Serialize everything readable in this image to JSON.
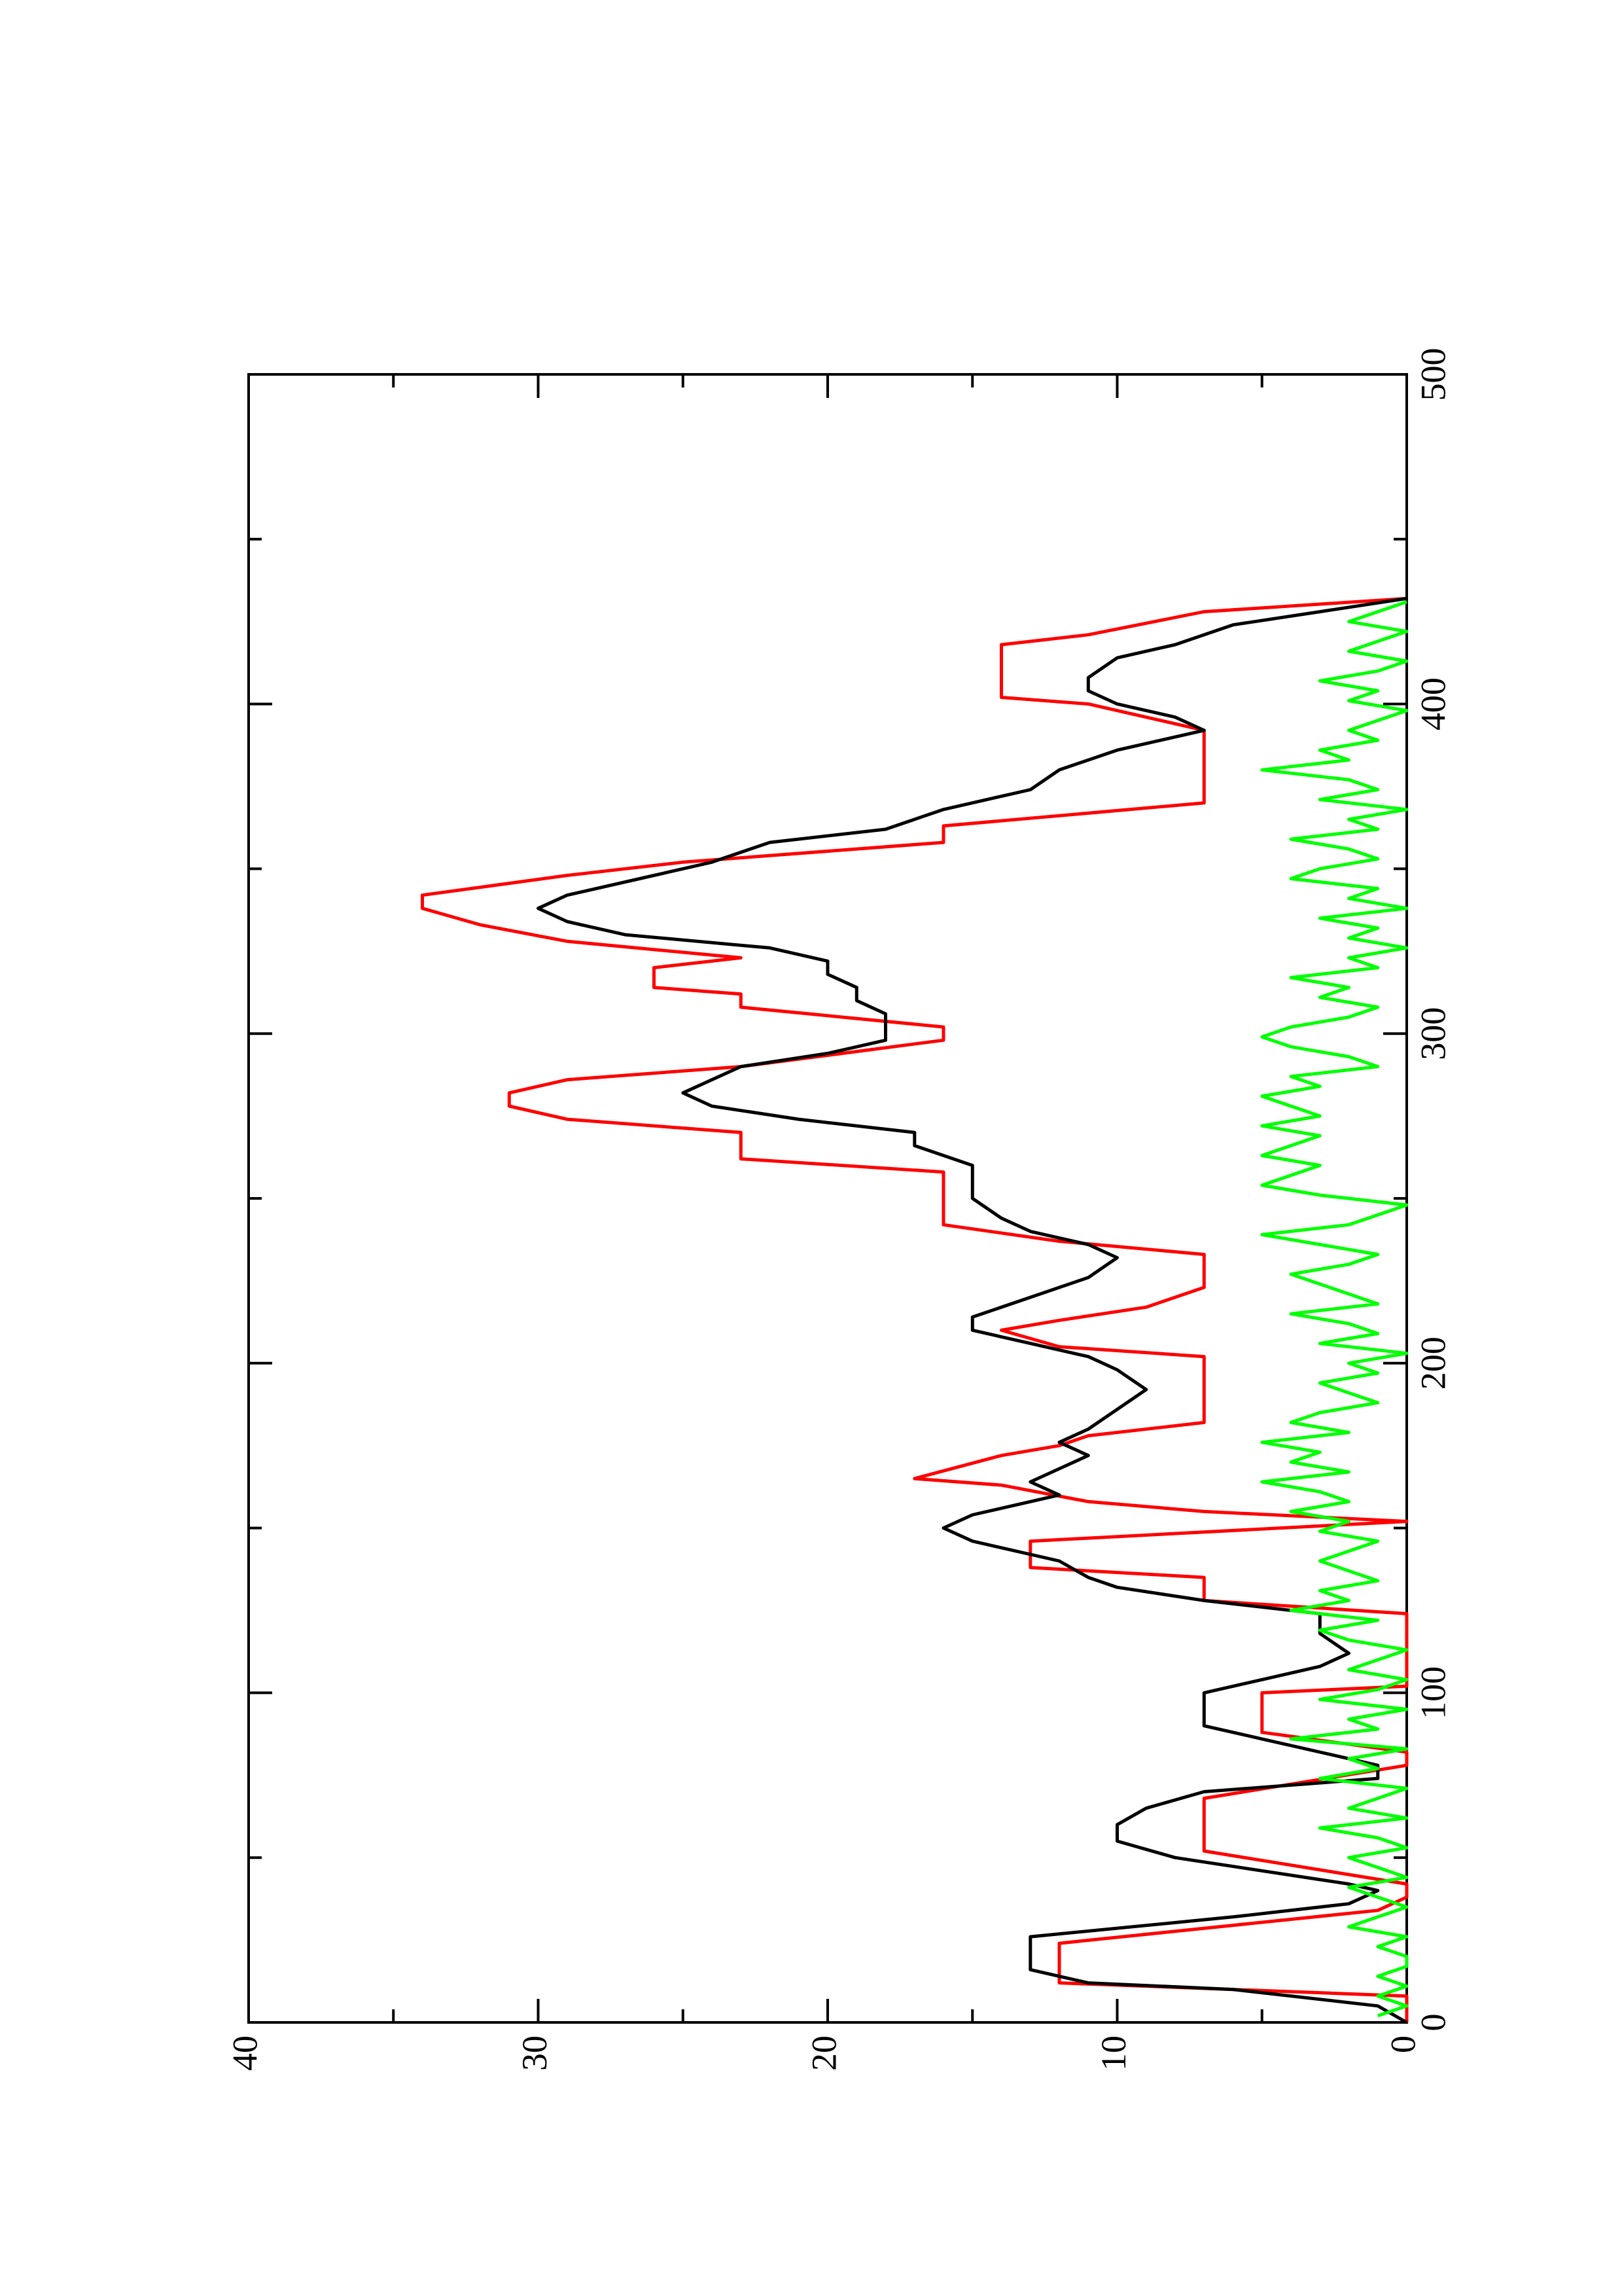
{
  "chart_data": {
    "type": "line",
    "orientation": "rotated-90-ccw",
    "title": "",
    "xlabel": "",
    "ylabel": "",
    "xlim": [
      0,
      500
    ],
    "ylim": [
      0,
      40
    ],
    "x_ticks": [
      0,
      100,
      200,
      300,
      400,
      500
    ],
    "y_ticks": [
      0,
      10,
      20,
      30,
      40
    ],
    "grid": false,
    "legend": "none",
    "series": [
      {
        "color": "#ff0000",
        "x": [
          0,
          8,
          12,
          22,
          24,
          34,
          38,
          42,
          52,
          54,
          66,
          68,
          78,
          82,
          88,
          90,
          100,
          102,
          110,
          124,
          128,
          135,
          138,
          143,
          146,
          152,
          155,
          158,
          163,
          165,
          172,
          175,
          178,
          182,
          190,
          202,
          205,
          210,
          213,
          217,
          223,
          233,
          237,
          242,
          248,
          258,
          262,
          270,
          274,
          278,
          282,
          286,
          290,
          298,
          302,
          308,
          312,
          314,
          320,
          323,
          328,
          333,
          338,
          342,
          348,
          352,
          358,
          363,
          370,
          390,
          392,
          400,
          402,
          408,
          418,
          421,
          428,
          432
        ],
        "y": [
          0,
          0,
          12,
          12,
          12,
          1,
          0,
          0,
          7,
          7,
          7,
          7,
          0,
          0,
          5,
          5,
          5,
          0,
          0,
          0,
          7,
          7,
          13,
          13,
          13,
          0,
          7,
          11,
          14,
          17,
          14,
          12,
          11,
          7,
          7,
          7,
          12,
          14,
          12,
          9,
          7,
          7,
          12,
          16,
          16,
          16,
          23,
          23,
          29,
          31,
          31,
          29,
          23,
          16,
          16,
          23,
          23,
          26,
          26,
          23,
          29,
          32,
          34,
          34,
          29,
          25,
          16,
          16,
          7,
          7,
          7,
          11,
          14,
          14,
          14,
          11,
          7,
          0
        ]
      },
      {
        "color": "#000000",
        "x": [
          0,
          5,
          10,
          12,
          16,
          22,
          26,
          32,
          36,
          40,
          42,
          50,
          55,
          60,
          65,
          70,
          74,
          78,
          82,
          86,
          90,
          96,
          100,
          104,
          108,
          112,
          118,
          124,
          128,
          132,
          135,
          140,
          146,
          150,
          154,
          160,
          164,
          168,
          172,
          176,
          180,
          186,
          192,
          198,
          202,
          206,
          210,
          214,
          220,
          226,
          232,
          236,
          240,
          244,
          250,
          256,
          260,
          266,
          270,
          274,
          278,
          282,
          286,
          290,
          294,
          298,
          302,
          306,
          310,
          314,
          318,
          322,
          326,
          330,
          334,
          338,
          342,
          348,
          352,
          358,
          362,
          368,
          374,
          380,
          386,
          392,
          396,
          400,
          404,
          408,
          414,
          418,
          424,
          428,
          432
        ],
        "y": [
          0,
          1,
          6,
          11,
          13,
          13,
          13,
          6,
          2,
          1,
          2,
          8,
          10,
          10,
          9,
          7,
          1,
          1,
          3,
          5,
          7,
          7,
          7,
          5,
          3,
          2,
          3,
          3,
          7,
          10,
          11,
          12,
          15,
          16,
          15,
          12,
          13,
          12,
          11,
          12,
          11,
          10,
          9,
          10,
          11,
          13,
          15,
          15,
          13,
          11,
          10,
          11,
          13,
          14,
          15,
          15,
          15,
          17,
          17,
          21,
          24,
          25,
          24,
          23,
          20,
          18,
          18,
          18,
          19,
          19,
          20,
          20,
          22,
          27,
          29,
          30,
          29,
          26,
          24,
          22,
          18,
          16,
          13,
          12,
          10,
          7,
          8,
          10,
          11,
          11,
          10,
          8,
          6,
          3,
          0
        ]
      },
      {
        "color": "#00ff00",
        "x": [
          2,
          5,
          8,
          11,
          14,
          17,
          20,
          23,
          26,
          29,
          32,
          35,
          38,
          41,
          44,
          47,
          50,
          53,
          56,
          59,
          62,
          65,
          68,
          71,
          74,
          77,
          80,
          83,
          86,
          89,
          92,
          95,
          98,
          101,
          104,
          107,
          110,
          113,
          116,
          119,
          122,
          125,
          128,
          131,
          134,
          137,
          140,
          143,
          146,
          149,
          152,
          155,
          158,
          161,
          164,
          167,
          170,
          173,
          176,
          179,
          182,
          185,
          188,
          191,
          194,
          197,
          200,
          203,
          206,
          209,
          212,
          215,
          218,
          221,
          224,
          227,
          230,
          233,
          236,
          239,
          242,
          245,
          248,
          251,
          254,
          257,
          260,
          263,
          266,
          269,
          272,
          275,
          278,
          281,
          284,
          287,
          290,
          293,
          296,
          299,
          302,
          305,
          308,
          311,
          314,
          317,
          320,
          323,
          326,
          329,
          332,
          335,
          338,
          341,
          344,
          347,
          350,
          353,
          356,
          359,
          362,
          365,
          368,
          371,
          374,
          377,
          380,
          383,
          386,
          389,
          392,
          395,
          398,
          401,
          404,
          407,
          410,
          413,
          416,
          419,
          422,
          425,
          428,
          431
        ],
        "y": [
          1,
          0,
          1,
          0,
          1,
          0,
          0,
          1,
          0,
          2,
          1,
          0,
          1,
          2,
          0,
          1,
          2,
          0,
          1,
          3,
          0,
          2,
          1,
          0,
          3,
          1,
          2,
          0,
          4,
          1,
          2,
          0,
          3,
          1,
          0,
          2,
          1,
          0,
          2,
          3,
          1,
          4,
          2,
          3,
          1,
          2,
          3,
          2,
          1,
          3,
          2,
          4,
          2,
          3,
          5,
          2,
          4,
          3,
          5,
          2,
          4,
          3,
          1,
          2,
          3,
          1,
          2,
          0,
          3,
          1,
          2,
          4,
          1,
          2,
          3,
          4,
          2,
          1,
          3,
          5,
          2,
          1,
          0,
          3,
          5,
          4,
          3,
          5,
          4,
          3,
          5,
          3,
          4,
          5,
          3,
          4,
          1,
          2,
          4,
          5,
          4,
          2,
          1,
          3,
          2,
          4,
          1,
          2,
          0,
          2,
          1,
          3,
          0,
          2,
          1,
          4,
          3,
          1,
          2,
          4,
          1,
          2,
          0,
          3,
          1,
          2,
          5,
          2,
          3,
          1,
          2,
          1,
          0,
          2,
          1,
          3,
          1,
          0,
          2,
          1,
          0,
          2,
          1,
          0
        ]
      }
    ]
  }
}
